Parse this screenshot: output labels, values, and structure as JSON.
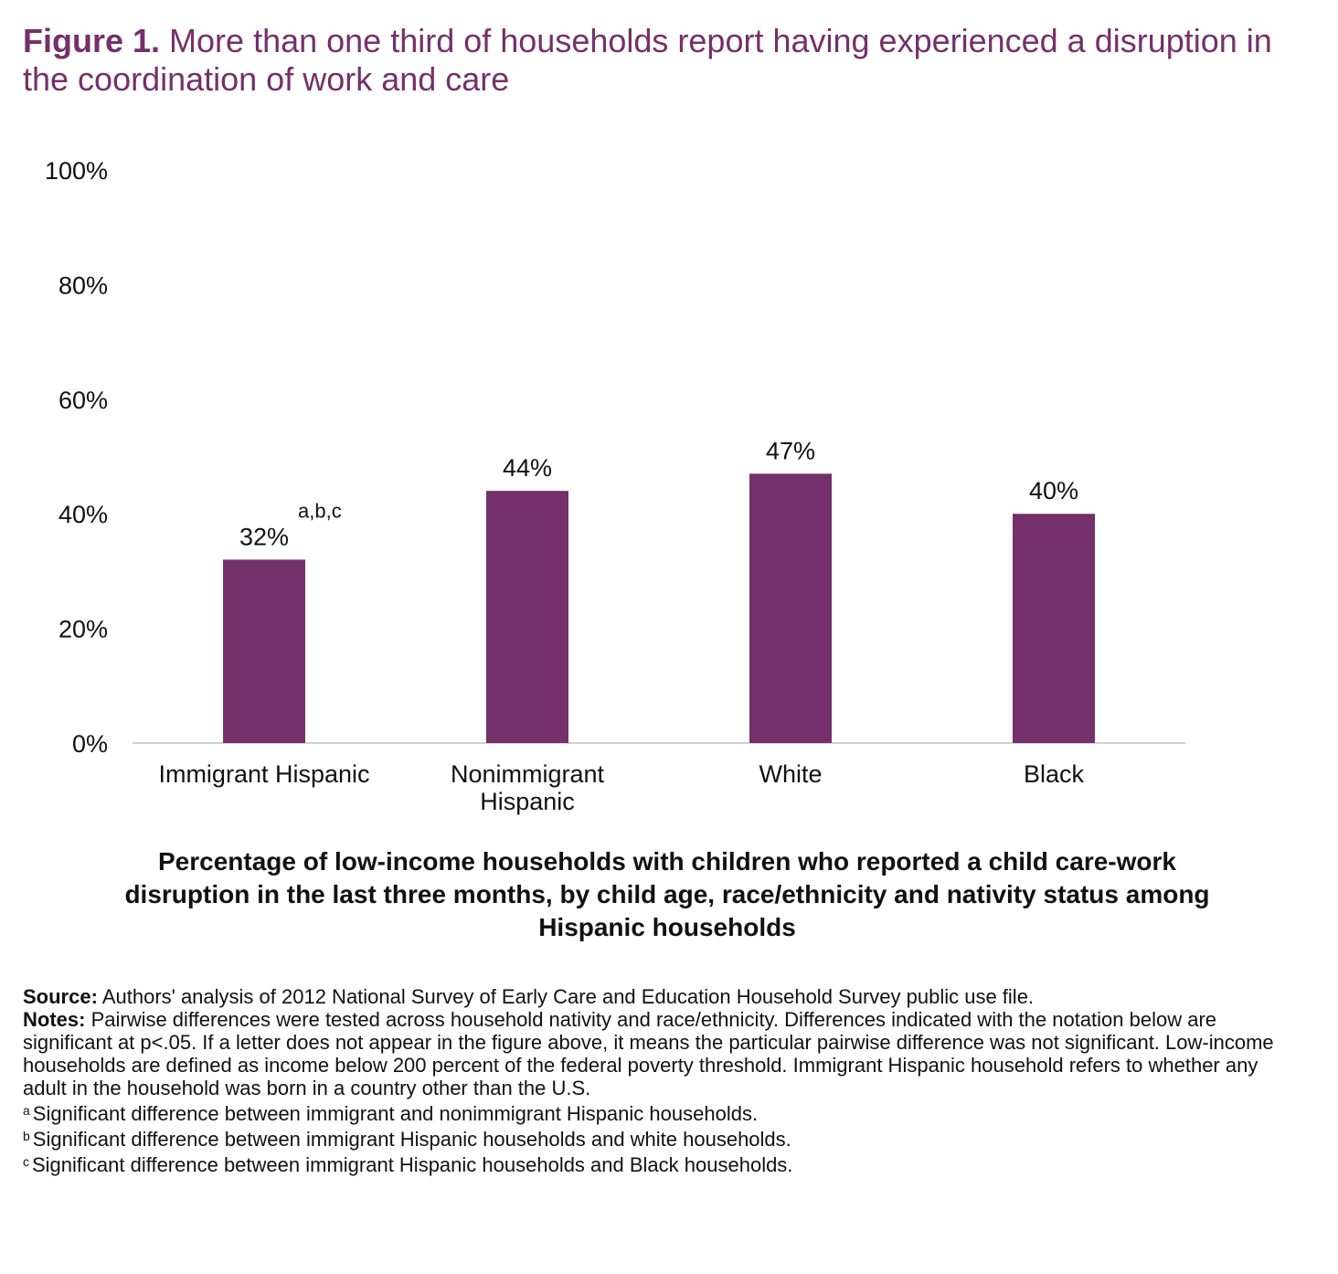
{
  "figure": {
    "label": "Figure 1.",
    "title": "More than one third of households report having experienced a disruption in the coordination of work and care"
  },
  "chart_data": {
    "type": "bar",
    "categories": [
      "Immigrant Hispanic",
      "Nonimmigrant Hispanic",
      "White",
      "Black"
    ],
    "values": [
      32,
      44,
      47,
      40
    ],
    "data_labels": [
      "32%",
      "44%",
      "47%",
      "40%"
    ],
    "annotations": [
      {
        "category": "Immigrant Hispanic",
        "text": "a,b,c"
      }
    ],
    "ylim": [
      0,
      100
    ],
    "yticks": [
      "0%",
      "20%",
      "40%",
      "60%",
      "80%",
      "100%"
    ],
    "grid": false,
    "bar_color": "#74306a",
    "title": "Percentage of low-income households with children who reported a child care-work disruption in the last three months, by child age, race/ethnicity and nativity status among Hispanic households"
  },
  "notes": {
    "source_label": "Source:",
    "source_text": " Authors' analysis of 2012 National Survey of Early Care and Education Household Survey public use file.",
    "notes_label": "Notes:",
    "notes_text": " Pairwise differences were tested across household nativity and race/ethnicity. Differences indicated with the notation below are significant at p<.05. If a letter does not appear in the figure above, it means the particular pairwise difference was not significant. Low-income households are defined as income below 200 percent of the federal poverty threshold. Immigrant Hispanic household refers to whether any adult in the household was born in a country other than the U.S.",
    "footnotes": [
      {
        "mark": "a",
        "text": "Significant difference between immigrant and nonimmigrant Hispanic households."
      },
      {
        "mark": "b",
        "text": "Significant difference between immigrant Hispanic households and white households."
      },
      {
        "mark": "c",
        "text": "Significant difference between immigrant Hispanic households and Black households."
      }
    ]
  }
}
